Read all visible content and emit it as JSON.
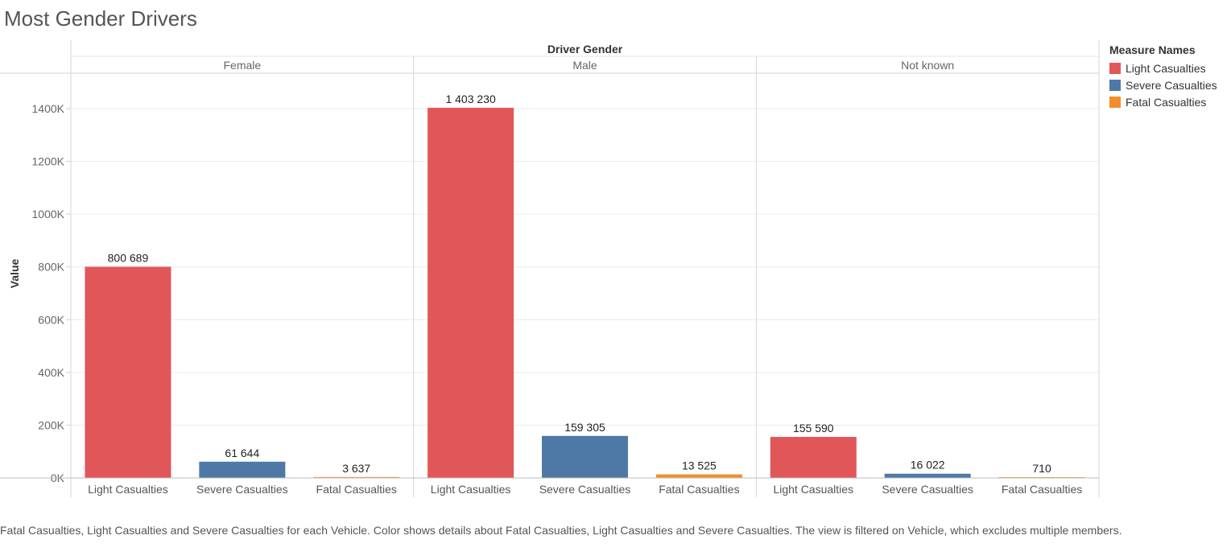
{
  "title": "Most Gender Drivers",
  "legend": {
    "title": "Measure Names",
    "items": [
      {
        "label": "Light Casualties",
        "color": "#e15759"
      },
      {
        "label": "Severe Casualties",
        "color": "#4e79a7"
      },
      {
        "label": "Fatal Casualties",
        "color": "#f28e2b"
      }
    ]
  },
  "caption": "Fatal Casualties, Light Casualties and Severe Casualties for each Vehicle.  Color shows details about Fatal Casualties, Light Casualties and Severe Casualties. The view is filtered on Vehicle, which excludes multiple members.",
  "chart_data": {
    "type": "bar",
    "column_header": "Driver Gender",
    "panels": [
      "Female",
      "Male",
      "Not known"
    ],
    "categories": [
      "Light Casualties",
      "Severe Casualties",
      "Fatal Casualties"
    ],
    "colors": [
      "#e15759",
      "#4e79a7",
      "#f28e2b"
    ],
    "values": [
      [
        800689,
        61644,
        3637
      ],
      [
        1403230,
        159305,
        13525
      ],
      [
        155590,
        16022,
        710
      ]
    ],
    "value_labels": [
      [
        "800 689",
        "61 644",
        "3 637"
      ],
      [
        "1 403 230",
        "159 305",
        "13 525"
      ],
      [
        "155 590",
        "16 022",
        "710"
      ]
    ],
    "ylabel": "Value",
    "ylim": [
      0,
      1500000
    ],
    "yticks": [
      0,
      200000,
      400000,
      600000,
      800000,
      1000000,
      1200000,
      1400000
    ],
    "ytick_labels": [
      "0K",
      "200K",
      "400K",
      "600K",
      "800K",
      "1000K",
      "1200K",
      "1400K"
    ],
    "grid": true
  }
}
